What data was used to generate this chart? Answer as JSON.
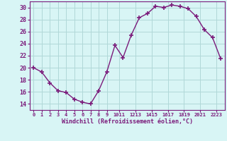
{
  "x": [
    0,
    1,
    2,
    3,
    4,
    5,
    6,
    7,
    8,
    9,
    10,
    11,
    12,
    13,
    14,
    15,
    16,
    17,
    18,
    19,
    20,
    21,
    22,
    23
  ],
  "y": [
    20.0,
    19.3,
    17.5,
    16.2,
    15.9,
    14.8,
    14.3,
    14.0,
    16.2,
    19.3,
    23.7,
    21.7,
    25.4,
    28.3,
    29.0,
    30.2,
    30.0,
    30.4,
    30.2,
    29.8,
    28.5,
    26.3,
    25.0,
    21.5
  ],
  "line_color": "#7B1B7B",
  "marker": "+",
  "marker_size": 4,
  "marker_lw": 1.2,
  "bg_color": "#d8f5f5",
  "grid_color": "#b0d8d8",
  "xlabel": "Windchill (Refroidissement éolien,°C)",
  "xlabel_color": "#7B1B7B",
  "ylabel_ticks": [
    14,
    16,
    18,
    20,
    22,
    24,
    26,
    28,
    30
  ],
  "ylim": [
    13.0,
    31.0
  ],
  "xlim": [
    -0.5,
    23.5
  ],
  "xtick_labels": [
    "0",
    "1",
    "2",
    "3",
    "4",
    "5",
    "6",
    "7",
    "8",
    "9",
    "1011",
    "1213",
    "1415",
    "1617",
    "1819",
    "2021",
    "2223"
  ],
  "xtick_positions": [
    0,
    1,
    2,
    3,
    4,
    5,
    6,
    7,
    8,
    9,
    10.5,
    12.5,
    14.5,
    16.5,
    18.5,
    20.5,
    22.5
  ],
  "tick_color": "#7B1B7B",
  "spine_color": "#7B1B7B",
  "line_width": 1.0
}
